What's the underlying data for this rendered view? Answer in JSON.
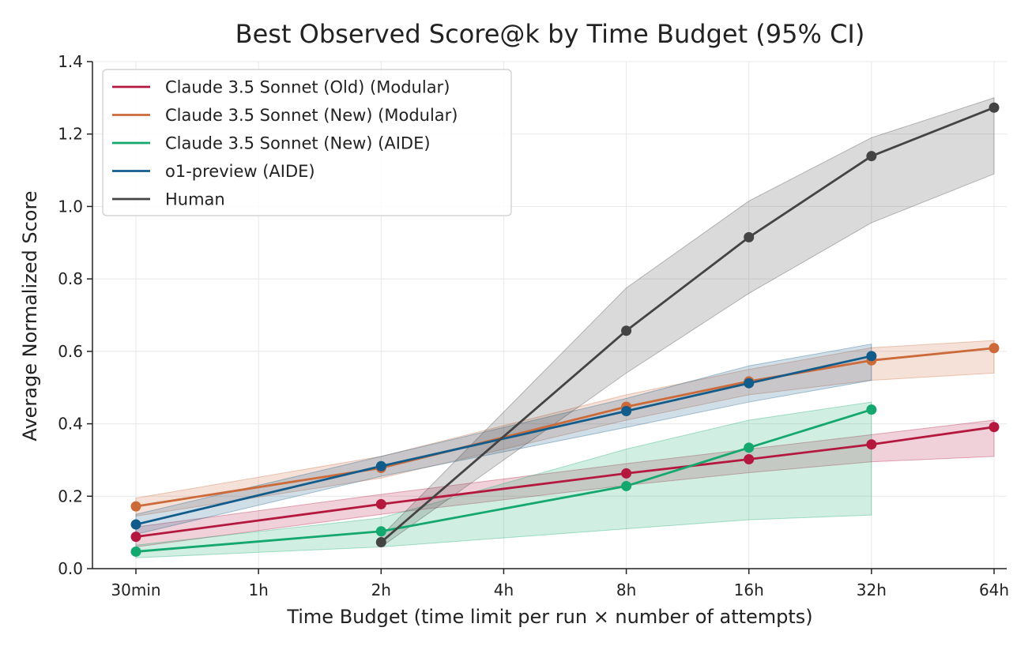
{
  "chart_data": {
    "type": "line",
    "title": "Best Observed Score@k by Time Budget (95% CI)",
    "xlabel": "Time Budget (time limit per run × number of attempts)",
    "ylabel": "Average Normalized Score",
    "x_scale": "log2",
    "x_ticks": [
      "30min",
      "1h",
      "2h",
      "4h",
      "8h",
      "16h",
      "32h",
      "64h"
    ],
    "x_tick_hours": [
      0.5,
      1,
      2,
      4,
      8,
      16,
      32,
      64
    ],
    "ylim": [
      0,
      1.4
    ],
    "y_ticks": [
      "0.0",
      "0.2",
      "0.4",
      "0.6",
      "0.8",
      "1.0",
      "1.2",
      "1.4"
    ],
    "grid": true,
    "legend_position": "top-left",
    "series": [
      {
        "name": "Claude 3.5 Sonnet (Old) (Modular)",
        "color": "#b5183f",
        "x_hours": [
          0.5,
          2,
          8,
          16,
          32,
          64
        ],
        "values": [
          0.088,
          0.178,
          0.263,
          0.302,
          0.343,
          0.391
        ],
        "ci_low": [
          0.06,
          0.15,
          0.23,
          0.265,
          0.295,
          0.31
        ],
        "ci_high": [
          0.115,
          0.205,
          0.29,
          0.33,
          0.37,
          0.41
        ]
      },
      {
        "name": "Claude 3.5 Sonnet (New) (Modular)",
        "color": "#cc6a3a",
        "x_hours": [
          0.5,
          2,
          8,
          16,
          32,
          64
        ],
        "values": [
          0.172,
          0.278,
          0.447,
          0.517,
          0.575,
          0.609
        ],
        "ci_low": [
          0.145,
          0.25,
          0.41,
          0.48,
          0.52,
          0.54
        ],
        "ci_high": [
          0.195,
          0.31,
          0.48,
          0.55,
          0.61,
          0.63
        ]
      },
      {
        "name": "Claude 3.5 Sonnet (New) (AIDE)",
        "color": "#14a86e",
        "x_hours": [
          0.5,
          2,
          8,
          16,
          32
        ],
        "values": [
          0.047,
          0.103,
          0.228,
          0.334,
          0.439
        ],
        "ci_low": [
          0.03,
          0.06,
          0.11,
          0.135,
          0.148
        ],
        "ci_high": [
          0.065,
          0.14,
          0.33,
          0.41,
          0.46
        ]
      },
      {
        "name": "o1-preview (AIDE)",
        "color": "#125c8c",
        "x_hours": [
          0.5,
          2,
          8,
          16,
          32
        ],
        "values": [
          0.122,
          0.283,
          0.435,
          0.512,
          0.587
        ],
        "ci_low": [
          0.095,
          0.255,
          0.39,
          0.46,
          0.52
        ],
        "ci_high": [
          0.15,
          0.31,
          0.47,
          0.56,
          0.62
        ]
      },
      {
        "name": "Human",
        "color": "#444444",
        "x_hours": [
          2,
          8,
          16,
          32,
          64
        ],
        "values": [
          0.073,
          0.657,
          0.915,
          1.139,
          1.273
        ],
        "ci_low": [
          0.06,
          0.54,
          0.76,
          0.955,
          1.09
        ],
        "ci_high": [
          0.09,
          0.775,
          1.015,
          1.19,
          1.3
        ]
      }
    ]
  }
}
